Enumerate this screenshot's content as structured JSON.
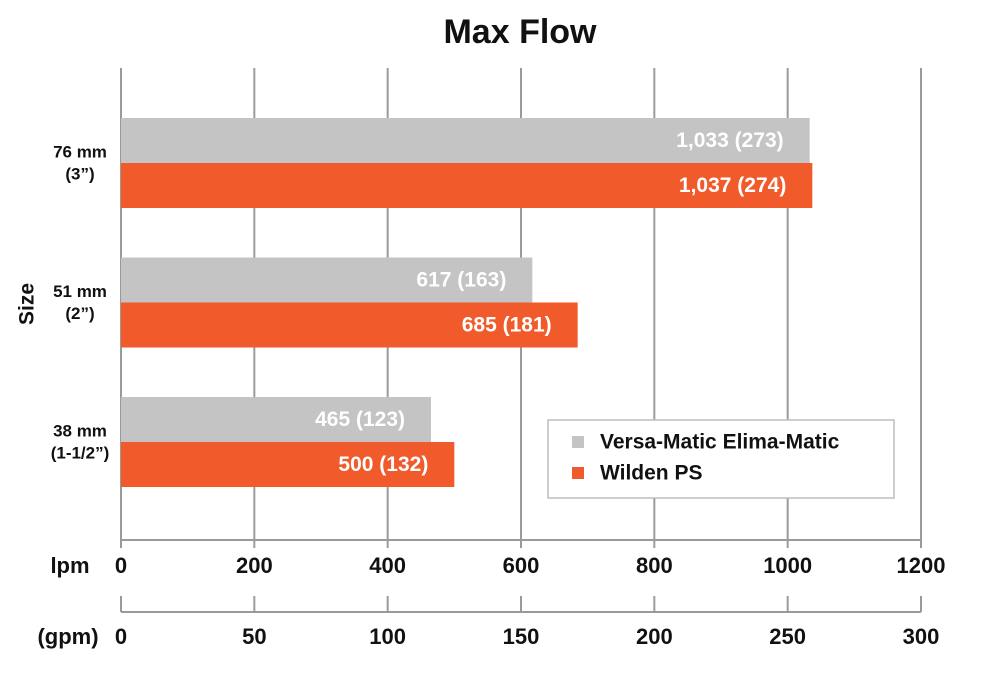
{
  "chart_data": {
    "type": "hbar",
    "title": "Max Flow",
    "ylabel": "Size",
    "xlabel": "lpm",
    "x2label": "(gpm)",
    "categories": [
      [
        "76 mm",
        "(3”)"
      ],
      [
        "51 mm",
        "(2”)"
      ],
      [
        "38 mm",
        "(1-1/2”)"
      ]
    ],
    "series": [
      {
        "name": "Versa-Matic Elima-Matic",
        "color": "#c4c4c4",
        "values": [
          1033,
          617,
          465
        ],
        "value_labels": [
          "1,033 (273)",
          "617 (163)",
          "465 (123)"
        ]
      },
      {
        "name": "Wilden PS",
        "color": "#f15a2b",
        "values": [
          1037,
          685,
          500
        ],
        "value_labels": [
          "1,037 (274)",
          "685 (181)",
          "500 (132)"
        ]
      }
    ],
    "xlim": [
      0,
      1200
    ],
    "xticks": [
      0,
      200,
      400,
      600,
      800,
      1000,
      1200
    ],
    "x2lim": [
      0,
      300
    ],
    "x2ticks": [
      0,
      50,
      100,
      150,
      200,
      250,
      300
    ],
    "grid": true,
    "legend": "lower-right"
  }
}
